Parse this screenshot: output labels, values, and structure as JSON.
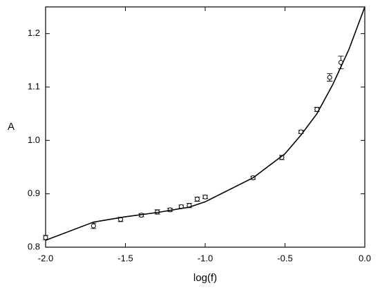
{
  "chart_data": {
    "type": "scatter",
    "x_label": "log(f)",
    "y_label": "A",
    "xlim": [
      -2.0,
      0.0
    ],
    "xticks": [
      {
        "value": -2.0,
        "label": "-2.0"
      },
      {
        "value": -1.5,
        "label": "-1.5"
      },
      {
        "value": -1.0,
        "label": "-1.0"
      },
      {
        "value": -0.5,
        "label": "-0.5"
      },
      {
        "value": 0.0,
        "label": "0.0"
      }
    ],
    "ylim": [
      0.8,
      1.25
    ],
    "yticks": [
      0.8,
      0.9,
      {
        "value": 1.0,
        "label": "1.0"
      },
      1.1,
      1.2
    ],
    "color": "#000000",
    "series": [
      {
        "type": "scatter",
        "x": [
          -2.0,
          -1.7,
          -1.53,
          -1.4,
          -1.3,
          -1.22,
          -1.15,
          -1.1,
          -1.05,
          -1.0,
          -0.7,
          -0.52,
          -0.4,
          -0.3,
          -0.22,
          -0.15
        ],
        "values": [
          0.818,
          0.84,
          0.852,
          0.86,
          0.866,
          0.87,
          0.876,
          0.878,
          0.89,
          0.894,
          0.93,
          0.968,
          1.016,
          1.058,
          1.118,
          1.146
        ],
        "errors": [
          0.004,
          0.005,
          0.004,
          0.003,
          0.004,
          0.003,
          0.003,
          0.004,
          0.004,
          0.003,
          0.003,
          0.004,
          0.003,
          0.004,
          0.007,
          0.012
        ]
      },
      {
        "type": "line",
        "x": [
          -2.0,
          -1.7,
          -1.5,
          -1.3,
          -1.1,
          -1.0,
          -0.7,
          -0.5,
          -0.4,
          -0.3,
          -0.2,
          -0.1,
          0.0
        ],
        "values": [
          0.813,
          0.847,
          0.857,
          0.865,
          0.875,
          0.885,
          0.93,
          0.975,
          1.01,
          1.05,
          1.105,
          1.17,
          1.25
        ]
      }
    ]
  }
}
